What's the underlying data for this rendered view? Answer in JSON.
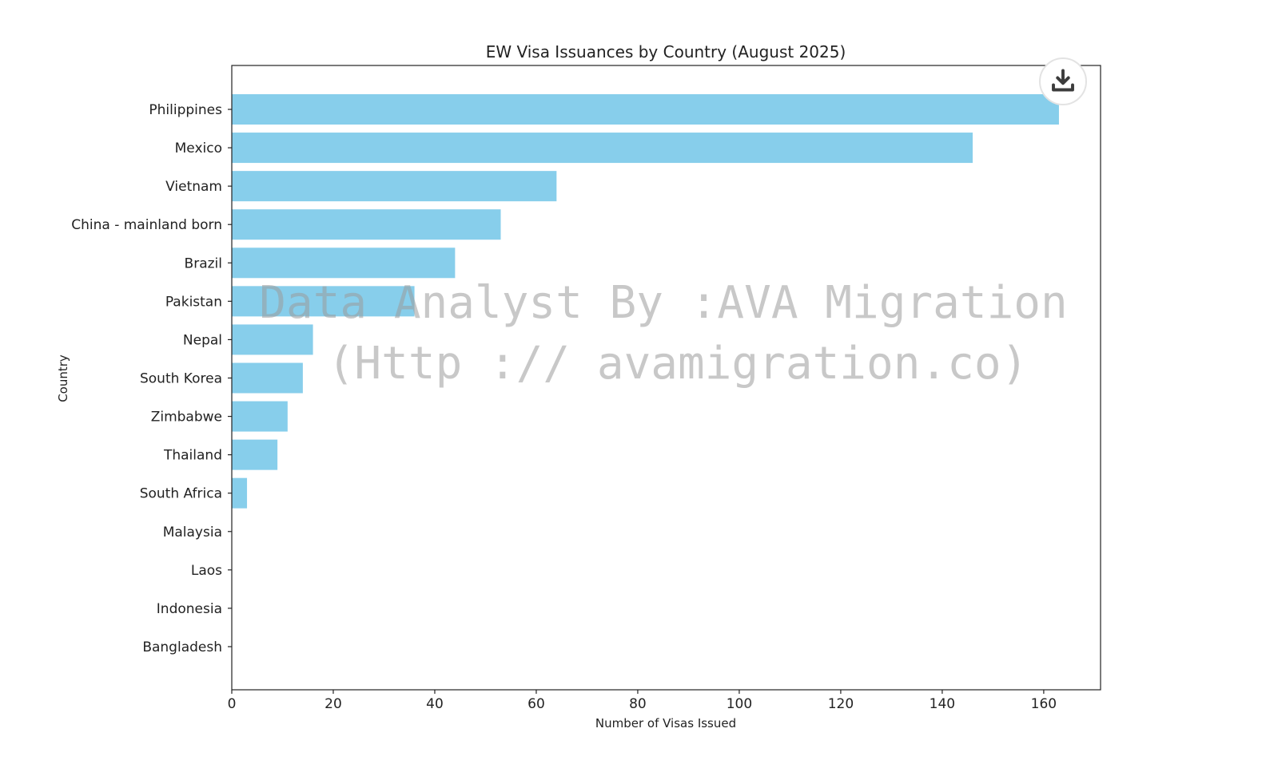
{
  "chart_data": {
    "type": "bar",
    "orientation": "horizontal",
    "title": "EW Visa Issuances by Country (August 2025)",
    "xlabel": "Number of Visas Issued",
    "ylabel": "Country",
    "categories": [
      "Philippines",
      "Mexico",
      "Vietnam",
      "China - mainland born",
      "Brazil",
      "Pakistan",
      "Nepal",
      "South Korea",
      "Zimbabwe",
      "Thailand",
      "South Africa",
      "Malaysia",
      "Laos",
      "Indonesia",
      "Bangladesh"
    ],
    "values": [
      163,
      146,
      64,
      53,
      44,
      36,
      16,
      14,
      11,
      9,
      3,
      0,
      0,
      0,
      0
    ],
    "xlim": [
      0,
      171.2
    ],
    "xticks": [
      0,
      20,
      40,
      60,
      80,
      100,
      120,
      140,
      160
    ],
    "bar_color": "#87CEEB",
    "grid": false,
    "watermark": [
      "Data Analyst By :AVA Migration",
      "(Http :// avamigration.co)"
    ]
  },
  "download_icon": "download-icon"
}
